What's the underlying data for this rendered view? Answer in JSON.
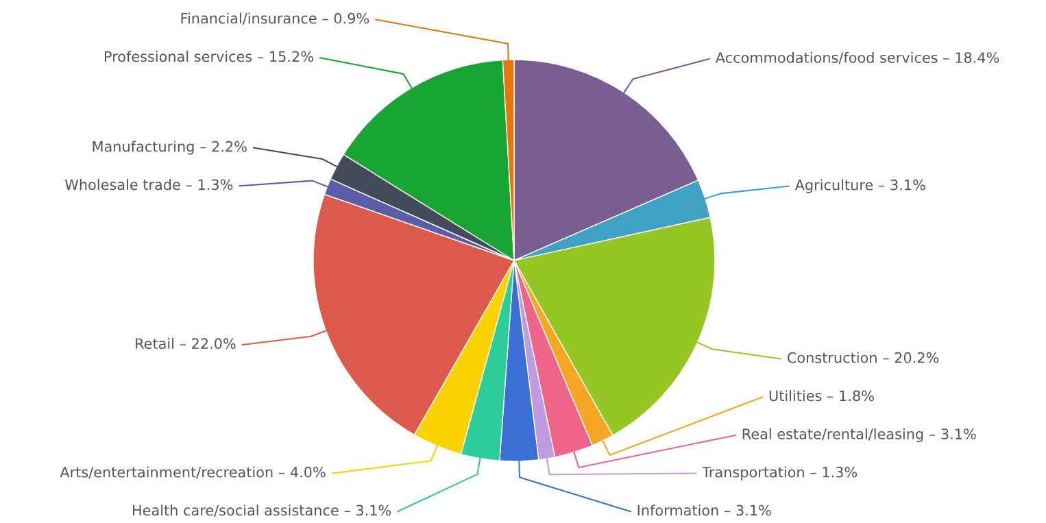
{
  "chart_data": {
    "type": "pie",
    "categories": [
      "Accommodations/food services",
      "Agriculture",
      "Construction",
      "Utilities",
      "Real estate/rental/leasing",
      "Transportation",
      "Information",
      "Health care/social assistance",
      "Arts/entertainment/recreation",
      "Retail",
      "Wholesale trade",
      "Manufacturing",
      "Professional services",
      "Financial/insurance"
    ],
    "values": [
      18.4,
      3.1,
      20.2,
      1.8,
      3.1,
      1.3,
      3.1,
      3.1,
      4.0,
      22.0,
      1.3,
      2.2,
      15.2,
      0.9
    ],
    "value_labels": [
      "18.4%",
      "3.1%",
      "20.2%",
      "1.8%",
      "3.1%",
      "1.3%",
      "3.1%",
      "3.1%",
      "4.0%",
      "22.0%",
      "1.3%",
      "2.2%",
      "15.2%",
      "0.9%"
    ],
    "colors": [
      "#7b5e91",
      "#3fa2c4",
      "#95c623",
      "#f5a623",
      "#ef6489",
      "#c19be0",
      "#3c6fd6",
      "#2ecc9a",
      "#fad201",
      "#db5a4b",
      "#5b5ea6",
      "#434a5a",
      "#18a531",
      "#e8740c"
    ]
  }
}
